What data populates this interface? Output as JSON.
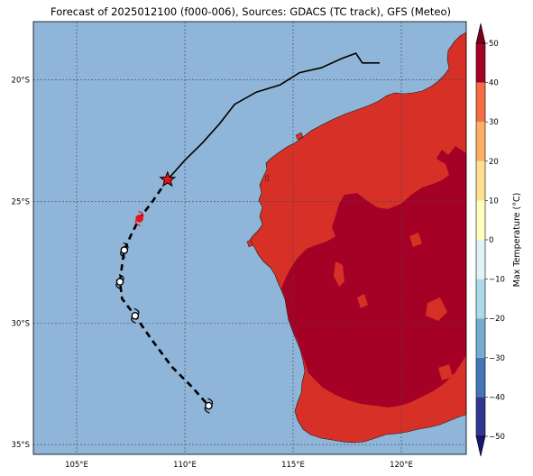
{
  "title": "Forecast of 2025012100 (f000-006), Sources: GDACS (TC track), GFS (Meteo)",
  "map": {
    "lon_range": [
      103,
      123
    ],
    "lat_range": [
      -35.4,
      -17.6
    ],
    "x_ticks": [
      {
        "value": 105,
        "label": "105°E"
      },
      {
        "value": 110,
        "label": "110°E"
      },
      {
        "value": 115,
        "label": "115°E"
      },
      {
        "value": 120,
        "label": "120°E"
      }
    ],
    "y_ticks": [
      {
        "value": -20,
        "label": "20°S"
      },
      {
        "value": -25,
        "label": "25°S"
      },
      {
        "value": -30,
        "label": "30°S"
      },
      {
        "value": -35,
        "label": "35°S"
      }
    ],
    "colors": {
      "ocean": "#8fb5d8",
      "land_hot": "#d73027",
      "land_very_hot": "#a50026",
      "track_past": "#000000",
      "forecast_marker": "#e8131b"
    }
  },
  "colorbar": {
    "label": "Max Temperature (°C)",
    "min": -50,
    "max": 50,
    "ticks": [
      {
        "value": 50,
        "label": "50"
      },
      {
        "value": 40,
        "label": "40"
      },
      {
        "value": 30,
        "label": "30"
      },
      {
        "value": 20,
        "label": "20"
      },
      {
        "value": 10,
        "label": "10"
      },
      {
        "value": 0,
        "label": "0"
      },
      {
        "value": -10,
        "label": "−10"
      },
      {
        "value": -20,
        "label": "−20"
      },
      {
        "value": -30,
        "label": "−30"
      },
      {
        "value": -40,
        "label": "−40"
      },
      {
        "value": -50,
        "label": "−50"
      }
    ],
    "bands": [
      {
        "from": -50,
        "to": -40,
        "color": "#313695"
      },
      {
        "from": -40,
        "to": -30,
        "color": "#4575b4"
      },
      {
        "from": -30,
        "to": -20,
        "color": "#74add1"
      },
      {
        "from": -20,
        "to": -10,
        "color": "#abd9e9"
      },
      {
        "from": -10,
        "to": 0,
        "color": "#e0f3f8"
      },
      {
        "from": 0,
        "to": 10,
        "color": "#ffffbf"
      },
      {
        "from": 10,
        "to": 20,
        "color": "#fee090"
      },
      {
        "from": 20,
        "to": 30,
        "color": "#fdae61"
      },
      {
        "from": 30,
        "to": 40,
        "color": "#f46d43"
      },
      {
        "from": 40,
        "to": 50,
        "color": "#a50026"
      }
    ],
    "extend_low_color": "#1a1470",
    "extend_high_color": "#7a001c"
  },
  "track": {
    "past": [
      [
        119.0,
        -19.3
      ],
      [
        118.2,
        -19.3
      ],
      [
        117.9,
        -18.9
      ],
      [
        117.3,
        -19.1
      ],
      [
        116.3,
        -19.5
      ],
      [
        115.3,
        -19.7
      ],
      [
        114.4,
        -20.2
      ],
      [
        113.3,
        -20.5
      ],
      [
        112.3,
        -21.0
      ],
      [
        111.6,
        -21.8
      ],
      [
        110.8,
        -22.6
      ],
      [
        110.0,
        -23.3
      ],
      [
        109.2,
        -24.1
      ]
    ],
    "forecast": [
      [
        109.2,
        -24.1
      ],
      [
        108.5,
        -25.0
      ],
      [
        107.9,
        -25.7
      ],
      [
        107.5,
        -26.4
      ],
      [
        107.2,
        -27.0
      ],
      [
        107.1,
        -27.6
      ],
      [
        107.0,
        -28.3
      ],
      [
        107.1,
        -29.0
      ],
      [
        107.7,
        -29.7
      ],
      [
        108.4,
        -30.6
      ],
      [
        109.4,
        -31.8
      ],
      [
        110.3,
        -32.6
      ],
      [
        111.1,
        -33.4
      ]
    ],
    "current_position": [
      109.2,
      -24.1
    ],
    "marker_points": [
      {
        "pos": [
          107.9,
          -25.7
        ],
        "color": "red"
      },
      {
        "pos": [
          107.2,
          -27.0
        ],
        "color": "white"
      },
      {
        "pos": [
          107.0,
          -28.3
        ],
        "color": "white"
      },
      {
        "pos": [
          107.7,
          -29.7
        ],
        "color": "white"
      },
      {
        "pos": [
          111.1,
          -33.4
        ],
        "color": "white"
      }
    ]
  }
}
